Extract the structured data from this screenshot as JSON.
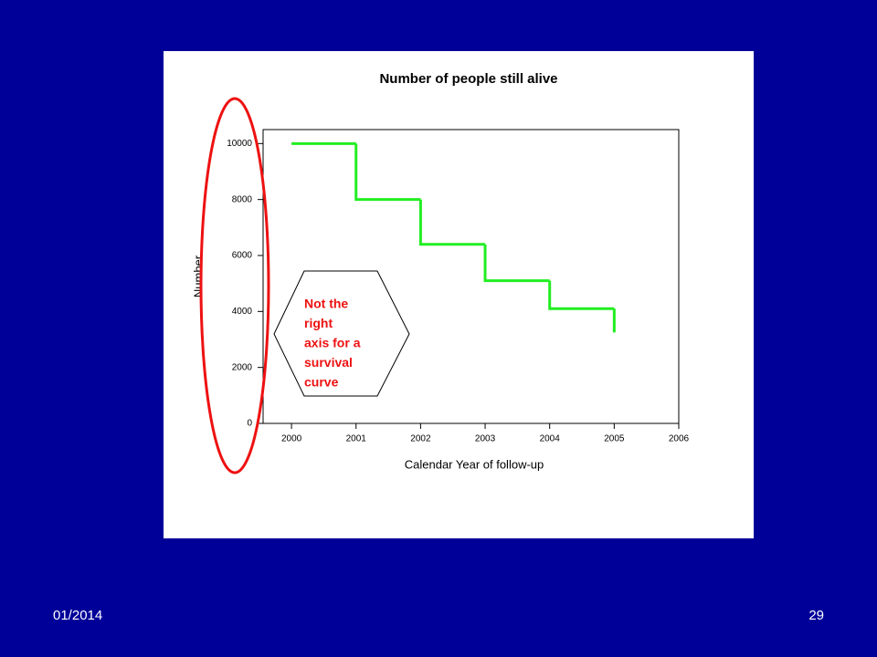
{
  "chart_data": {
    "type": "line",
    "step": "post",
    "title": "Number of people still alive",
    "x": [
      2000,
      2001,
      2002,
      2003,
      2004,
      2005
    ],
    "values": [
      10000,
      8000,
      6400,
      5100,
      4100,
      3250
    ],
    "color": "#22ee22",
    "xlabel": "Calendar Year of follow-up",
    "ylabel": "Number",
    "xlim": [
      1999.56,
      2006
    ],
    "xticks": [
      2000,
      2001,
      2002,
      2003,
      2004,
      2005,
      2006
    ],
    "ylim": [
      0,
      10500
    ],
    "yticks": [
      0,
      2000,
      4000,
      6000,
      8000,
      10000
    ],
    "grid": false,
    "annotation": [
      "Not the",
      "right",
      "axis for a",
      "survival",
      "curve"
    ]
  },
  "footer": {
    "date": "01/2014",
    "page": "29"
  }
}
